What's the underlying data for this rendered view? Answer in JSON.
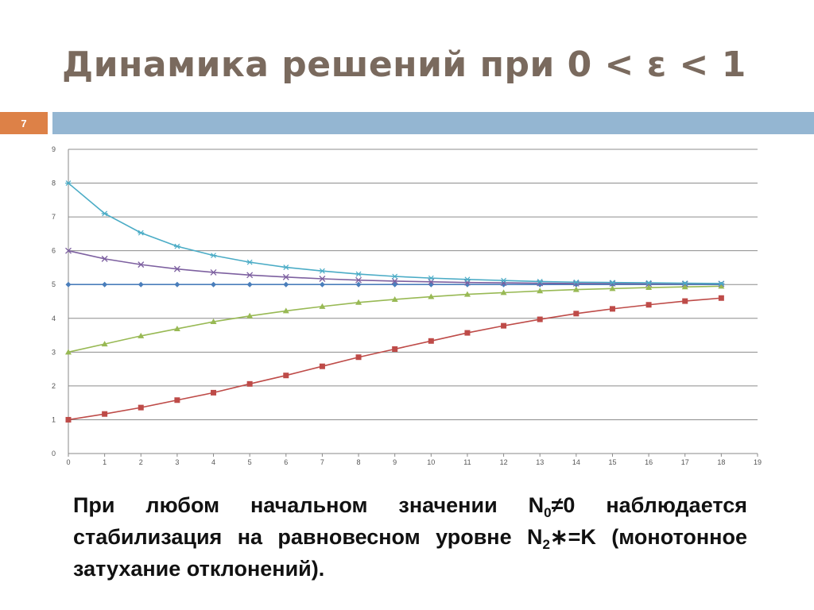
{
  "slide": {
    "title": "Динамика решений при 0 < ε < 1",
    "number": "7"
  },
  "text": {
    "line1_pre": "При любом начальном значении N",
    "sub0": "0",
    "line1_post": "≠0 наблюдается стабилизация на равновесном уровне N",
    "sub2": "2",
    "line2_post": "∗=K (монотонное затухание отклонений)."
  },
  "colors": {
    "accent_orange": "#dd8147",
    "accent_blue": "#94b6d2",
    "title": "#7a6a5e"
  },
  "chart_data": {
    "type": "line",
    "x": [
      0,
      1,
      2,
      3,
      4,
      5,
      6,
      7,
      8,
      9,
      10,
      11,
      12,
      13,
      14,
      15,
      16,
      17,
      18
    ],
    "xlim": [
      0,
      19
    ],
    "ylim": [
      0,
      9
    ],
    "xticks": [
      0,
      1,
      2,
      3,
      4,
      5,
      6,
      7,
      8,
      9,
      10,
      11,
      12,
      13,
      14,
      15,
      16,
      17,
      18,
      19
    ],
    "yticks": [
      0,
      1,
      2,
      3,
      4,
      5,
      6,
      7,
      8,
      9
    ],
    "grid": "horizontal",
    "legend": "none",
    "series": [
      {
        "color": "#4a7ebb",
        "marker": "diamond",
        "values": [
          5,
          5,
          5,
          5,
          5,
          5,
          5,
          5,
          5,
          5,
          5,
          5,
          5,
          5,
          5,
          5,
          5,
          5,
          5
        ]
      },
      {
        "color": "#be4b48",
        "marker": "square",
        "values": [
          1,
          1.17,
          1.36,
          1.58,
          1.8,
          2.06,
          2.31,
          2.58,
          2.85,
          3.09,
          3.33,
          3.57,
          3.78,
          3.97,
          4.14,
          4.28,
          4.4,
          4.51,
          4.6
        ]
      },
      {
        "color": "#98b954",
        "marker": "triangle",
        "values": [
          3,
          3.24,
          3.48,
          3.69,
          3.9,
          4.07,
          4.22,
          4.35,
          4.47,
          4.56,
          4.64,
          4.71,
          4.76,
          4.81,
          4.85,
          4.88,
          4.91,
          4.93,
          4.95
        ]
      },
      {
        "color": "#7d60a0",
        "marker": "x",
        "values": [
          6,
          5.76,
          5.59,
          5.46,
          5.36,
          5.28,
          5.22,
          5.17,
          5.13,
          5.1,
          5.08,
          5.06,
          5.05,
          5.04,
          5.03,
          5.03,
          5.02,
          5.02,
          5.02
        ]
      },
      {
        "color": "#4bacc6",
        "marker": "star",
        "values": [
          8,
          7.1,
          6.53,
          6.13,
          5.86,
          5.66,
          5.51,
          5.4,
          5.31,
          5.24,
          5.19,
          5.15,
          5.12,
          5.09,
          5.07,
          5.06,
          5.05,
          5.04,
          5.03
        ]
      }
    ]
  }
}
